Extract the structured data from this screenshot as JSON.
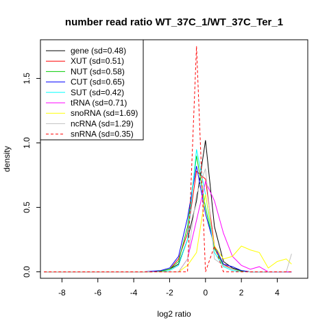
{
  "chart_data": {
    "type": "line",
    "title": "number read ratio WT_37C_1/WT_37C_Ter_1",
    "xlabel": "log2 ratio",
    "ylabel": "density",
    "xlim": [
      -9.2,
      5.7
    ],
    "ylim": [
      -0.05,
      1.8
    ],
    "xticks": [
      -8,
      -6,
      -4,
      -2,
      0,
      2,
      4
    ],
    "xtick_labels": [
      "-8",
      "-6",
      "-4",
      "-2",
      "0",
      "2",
      "4"
    ],
    "yticks": [
      0.0,
      0.5,
      1.0,
      1.5
    ],
    "ytick_labels": [
      "0.0",
      "0.5",
      "1.0",
      "1.5"
    ],
    "grid": false,
    "legend_position": "top-left",
    "series": [
      {
        "name": "gene (sd=0.48)",
        "color": "#000000",
        "dashed": false,
        "x": [
          -9.0,
          -8.5,
          -8.0,
          -7.5,
          -7.0,
          -6.5,
          -6.0,
          -5.5,
          -5.0,
          -4.5,
          -4.0,
          -3.5,
          -3.0,
          -2.5,
          -2.0,
          -1.5,
          -1.0,
          -0.5,
          0.0,
          0.5,
          1.0,
          1.5,
          2.0,
          2.5,
          3.0,
          3.5,
          4.0,
          4.5,
          4.8
        ],
        "y": [
          0.0,
          0.0,
          0.0,
          0.0,
          0.0,
          0.0,
          0.0,
          0.0,
          0.0,
          0.0,
          0.0,
          0.0,
          0.0,
          0.005,
          0.02,
          0.06,
          0.25,
          0.55,
          1.02,
          0.35,
          0.08,
          0.03,
          0.01,
          0.0,
          0.0,
          0.0,
          0.0,
          0.0,
          0.0
        ]
      },
      {
        "name": "XUT (sd=0.51)",
        "color": "#ff0000",
        "dashed": false,
        "x": [
          -9.0,
          -8.5,
          -8.0,
          -7.5,
          -7.0,
          -6.5,
          -6.0,
          -5.5,
          -5.0,
          -4.5,
          -4.0,
          -3.5,
          -3.0,
          -2.5,
          -2.0,
          -1.5,
          -1.0,
          -0.5,
          0.0,
          0.5,
          1.0,
          1.5,
          2.0,
          2.5,
          3.0,
          3.5,
          4.0,
          4.5,
          4.8
        ],
        "y": [
          0.0,
          0.0,
          0.0,
          0.0,
          0.0,
          0.0,
          0.0,
          0.0,
          0.0,
          0.0,
          0.0,
          0.0,
          0.0,
          0.005,
          0.02,
          0.1,
          0.3,
          0.78,
          0.72,
          0.2,
          0.06,
          0.02,
          0.005,
          0.0,
          0.0,
          0.0,
          0.0,
          0.0,
          0.0
        ]
      },
      {
        "name": "NUT (sd=0.58)",
        "color": "#00cc00",
        "dashed": false,
        "x": [
          -9.0,
          -8.5,
          -8.0,
          -7.5,
          -7.0,
          -6.5,
          -6.0,
          -5.5,
          -5.0,
          -4.5,
          -4.0,
          -3.5,
          -3.0,
          -2.5,
          -2.0,
          -1.5,
          -1.0,
          -0.5,
          0.0,
          0.5,
          1.0,
          1.5,
          2.0,
          2.5,
          3.0,
          3.5,
          4.0,
          4.5,
          4.8
        ],
        "y": [
          0.0,
          0.0,
          0.0,
          0.0,
          0.0,
          0.0,
          0.0,
          0.0,
          0.0,
          0.0,
          0.0,
          0.0,
          0.0,
          0.005,
          0.02,
          0.08,
          0.35,
          0.9,
          0.5,
          0.18,
          0.05,
          0.02,
          0.005,
          0.0,
          0.0,
          0.0,
          0.0,
          0.0,
          0.0
        ]
      },
      {
        "name": "CUT (sd=0.65)",
        "color": "#0000ff",
        "dashed": false,
        "x": [
          -9.0,
          -8.5,
          -8.0,
          -7.5,
          -7.0,
          -6.5,
          -6.0,
          -5.5,
          -5.0,
          -4.5,
          -4.0,
          -3.5,
          -3.0,
          -2.5,
          -2.0,
          -1.5,
          -1.0,
          -0.5,
          0.0,
          0.5,
          1.0,
          1.5,
          2.0,
          2.5,
          3.0,
          3.5,
          4.0,
          4.5,
          4.8
        ],
        "y": [
          0.0,
          0.0,
          0.0,
          0.0,
          0.0,
          0.0,
          0.0,
          0.0,
          0.0,
          0.0,
          0.0,
          0.0,
          0.005,
          0.01,
          0.03,
          0.12,
          0.42,
          0.82,
          0.45,
          0.2,
          0.06,
          0.04,
          0.01,
          0.0,
          0.0,
          0.0,
          0.0,
          0.0,
          0.0
        ]
      },
      {
        "name": "SUT (sd=0.42)",
        "color": "#00ffff",
        "dashed": false,
        "x": [
          -9.0,
          -8.5,
          -8.0,
          -7.5,
          -7.0,
          -6.5,
          -6.0,
          -5.5,
          -5.0,
          -4.5,
          -4.0,
          -3.5,
          -3.0,
          -2.5,
          -2.0,
          -1.5,
          -1.0,
          -0.5,
          0.0,
          0.5,
          1.0,
          1.5,
          2.0,
          2.5,
          3.0,
          3.5,
          4.0,
          4.5,
          4.8
        ],
        "y": [
          0.0,
          0.0,
          0.0,
          0.0,
          0.0,
          0.0,
          0.0,
          0.0,
          0.0,
          0.0,
          0.0,
          0.0,
          0.0,
          0.0,
          0.01,
          0.05,
          0.25,
          0.95,
          0.6,
          0.15,
          0.04,
          0.01,
          0.0,
          0.0,
          0.0,
          0.0,
          0.0,
          0.0,
          0.0
        ]
      },
      {
        "name": "tRNA (sd=0.71)",
        "color": "#ff00ff",
        "dashed": false,
        "x": [
          -9.0,
          -8.5,
          -8.0,
          -7.5,
          -7.0,
          -6.5,
          -6.0,
          -5.5,
          -5.0,
          -4.5,
          -4.0,
          -3.5,
          -3.0,
          -2.5,
          -2.0,
          -1.5,
          -1.0,
          -0.5,
          0.0,
          0.5,
          1.0,
          1.5,
          2.0,
          2.5,
          3.0,
          3.5,
          4.0,
          4.5,
          4.8
        ],
        "y": [
          0.0,
          0.0,
          0.0,
          0.0,
          0.0,
          0.0,
          0.0,
          0.0,
          0.0,
          0.0,
          0.0,
          0.0,
          0.0,
          0.0,
          0.0,
          0.0,
          0.1,
          0.4,
          0.7,
          0.55,
          0.3,
          0.12,
          0.05,
          0.02,
          0.04,
          0.0,
          0.0,
          0.0,
          0.0
        ]
      },
      {
        "name": "snoRNA (sd=1.69)",
        "color": "#ffff00",
        "dashed": false,
        "x": [
          -9.0,
          -8.5,
          -8.0,
          -7.5,
          -7.0,
          -6.5,
          -6.0,
          -5.5,
          -5.0,
          -4.5,
          -4.0,
          -3.5,
          -3.0,
          -2.5,
          -2.0,
          -1.5,
          -1.0,
          -0.5,
          0.0,
          0.5,
          1.0,
          1.5,
          2.0,
          2.5,
          3.0,
          3.5,
          4.0,
          4.5,
          4.8
        ],
        "y": [
          0.0,
          0.0,
          0.0,
          0.0,
          0.0,
          0.0,
          0.0,
          0.0,
          0.0,
          0.0,
          0.0,
          0.0,
          0.0,
          0.0,
          0.0,
          0.0,
          0.05,
          0.15,
          0.6,
          0.2,
          0.1,
          0.12,
          0.2,
          0.17,
          0.15,
          0.03,
          0.08,
          0.1,
          0.06
        ]
      },
      {
        "name": "ncRNA (sd=1.29)",
        "color": "#c0c0c0",
        "dashed": false,
        "x": [
          -9.0,
          -8.5,
          -8.0,
          -7.5,
          -7.0,
          -6.5,
          -6.0,
          -5.5,
          -5.0,
          -4.5,
          -4.0,
          -3.5,
          -3.0,
          -2.5,
          -2.0,
          -1.5,
          -1.0,
          -0.5,
          0.0,
          0.5,
          1.0,
          1.5,
          2.0,
          2.5,
          3.0,
          3.5,
          4.0,
          4.5,
          4.8
        ],
        "y": [
          0.0,
          0.0,
          0.0,
          0.0,
          0.0,
          0.0,
          0.0,
          0.0,
          0.0,
          0.0,
          0.0,
          0.0,
          0.0,
          0.0,
          0.0,
          0.0,
          0.1,
          0.6,
          0.8,
          0.1,
          0.05,
          0.02,
          0.0,
          0.0,
          0.0,
          0.0,
          0.0,
          0.0,
          0.14
        ]
      },
      {
        "name": "snRNA (sd=0.35)",
        "color": "#ff0000",
        "dashed": true,
        "x": [
          -9.0,
          -8.5,
          -8.0,
          -7.5,
          -7.0,
          -6.5,
          -6.0,
          -5.5,
          -5.0,
          -4.5,
          -4.0,
          -3.5,
          -3.0,
          -2.5,
          -2.0,
          -1.5,
          -1.0,
          -0.5,
          0.0,
          0.5,
          1.0,
          1.5,
          2.0,
          2.5,
          3.0,
          3.5,
          4.0,
          4.5,
          4.8
        ],
        "y": [
          0.0,
          0.0,
          0.0,
          0.0,
          0.0,
          0.0,
          0.0,
          0.0,
          0.0,
          0.0,
          0.0,
          0.0,
          0.0,
          0.0,
          0.0,
          0.0,
          0.0,
          1.75,
          0.0,
          0.2,
          0.0,
          0.0,
          0.0,
          0.0,
          0.0,
          0.0,
          0.0,
          0.0,
          0.0
        ]
      }
    ]
  }
}
